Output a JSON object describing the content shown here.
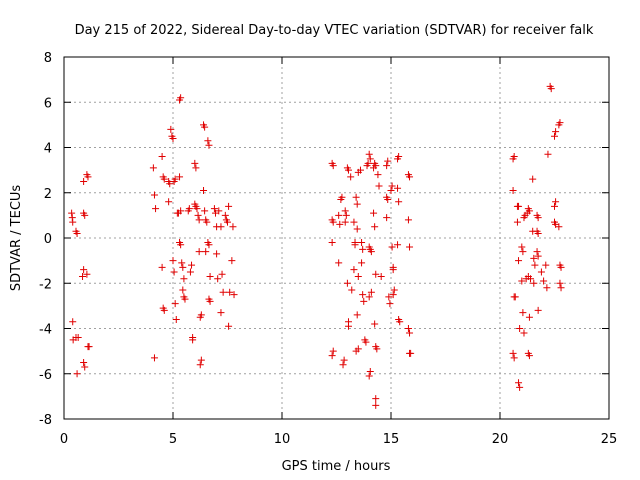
{
  "chart_data": {
    "type": "scatter",
    "title": "Day 215 of 2022, Sidereal Day-to-day VTEC variation (SDTVAR) for receiver falk",
    "xlabel": "GPS time / hours",
    "ylabel": "SDTVAR / TECUs",
    "xlim": [
      0,
      25
    ],
    "ylim": [
      -8,
      8
    ],
    "xticks": [
      0,
      5,
      10,
      15,
      20,
      25
    ],
    "yticks": [
      -8,
      -6,
      -4,
      -2,
      0,
      2,
      4,
      6,
      8
    ],
    "grid": true,
    "marker": "plus",
    "color": "#e00000",
    "series": [
      {
        "name": "falk",
        "points": [
          [
            0.35,
            1.1
          ],
          [
            0.38,
            0.9
          ],
          [
            0.4,
            0.7
          ],
          [
            0.55,
            0.3
          ],
          [
            0.6,
            0.2
          ],
          [
            0.4,
            -3.7
          ],
          [
            0.42,
            -4.5
          ],
          [
            0.55,
            -4.4
          ],
          [
            0.65,
            -4.4
          ],
          [
            0.6,
            -6.0
          ],
          [
            0.9,
            -5.5
          ],
          [
            0.95,
            -5.7
          ],
          [
            0.9,
            -1.4
          ],
          [
            0.85,
            -1.7
          ],
          [
            1.05,
            -1.6
          ],
          [
            1.1,
            -4.8
          ],
          [
            1.15,
            -4.8
          ],
          [
            0.9,
            2.5
          ],
          [
            1.05,
            2.8
          ],
          [
            1.1,
            2.7
          ],
          [
            0.9,
            1.1
          ],
          [
            0.95,
            1.0
          ],
          [
            4.1,
            3.1
          ],
          [
            4.15,
            1.9
          ],
          [
            4.2,
            1.3
          ],
          [
            4.15,
            -5.3
          ],
          [
            4.5,
            3.6
          ],
          [
            4.55,
            2.7
          ],
          [
            4.6,
            2.6
          ],
          [
            4.5,
            -1.3
          ],
          [
            4.55,
            -3.1
          ],
          [
            4.6,
            -3.2
          ],
          [
            4.8,
            2.5
          ],
          [
            4.85,
            2.4
          ],
          [
            4.8,
            1.6
          ],
          [
            4.9,
            4.8
          ],
          [
            4.95,
            4.5
          ],
          [
            5.0,
            4.4
          ],
          [
            5.05,
            2.5
          ],
          [
            5.1,
            2.6
          ],
          [
            5.2,
            1.1
          ],
          [
            5.25,
            1.1
          ],
          [
            5.0,
            -1.0
          ],
          [
            5.05,
            -1.5
          ],
          [
            5.1,
            -2.9
          ],
          [
            5.15,
            -3.6
          ],
          [
            5.3,
            6.1
          ],
          [
            5.35,
            6.2
          ],
          [
            5.3,
            2.7
          ],
          [
            5.35,
            1.2
          ],
          [
            5.3,
            -0.2
          ],
          [
            5.35,
            -0.3
          ],
          [
            5.4,
            -1.1
          ],
          [
            5.45,
            -1.3
          ],
          [
            5.5,
            -1.8
          ],
          [
            5.45,
            -2.3
          ],
          [
            5.5,
            -2.6
          ],
          [
            5.55,
            -2.7
          ],
          [
            5.7,
            1.2
          ],
          [
            5.75,
            1.3
          ],
          [
            5.8,
            -1.5
          ],
          [
            5.85,
            -1.2
          ],
          [
            5.9,
            -4.5
          ],
          [
            5.9,
            -4.4
          ],
          [
            6.0,
            3.3
          ],
          [
            6.05,
            3.1
          ],
          [
            6.0,
            1.5
          ],
          [
            6.05,
            1.4
          ],
          [
            6.1,
            1.3
          ],
          [
            6.15,
            1.0
          ],
          [
            6.2,
            0.8
          ],
          [
            6.2,
            -0.6
          ],
          [
            6.25,
            -3.5
          ],
          [
            6.3,
            -3.4
          ],
          [
            6.3,
            -5.4
          ],
          [
            6.25,
            -5.6
          ],
          [
            6.4,
            5.0
          ],
          [
            6.45,
            4.9
          ],
          [
            6.4,
            2.1
          ],
          [
            6.45,
            1.2
          ],
          [
            6.5,
            0.8
          ],
          [
            6.55,
            0.7
          ],
          [
            6.5,
            -0.6
          ],
          [
            6.6,
            -0.2
          ],
          [
            6.65,
            -0.3
          ],
          [
            6.7,
            -1.7
          ],
          [
            6.65,
            -2.7
          ],
          [
            6.7,
            -2.8
          ],
          [
            6.6,
            4.3
          ],
          [
            6.65,
            4.1
          ],
          [
            6.9,
            1.3
          ],
          [
            6.95,
            1.1
          ],
          [
            7.0,
            0.5
          ],
          [
            7.0,
            -0.7
          ],
          [
            7.05,
            -1.8
          ],
          [
            7.1,
            1.2
          ],
          [
            7.2,
            0.5
          ],
          [
            7.25,
            -1.6
          ],
          [
            7.2,
            -3.3
          ],
          [
            7.3,
            -2.4
          ],
          [
            7.4,
            1.0
          ],
          [
            7.45,
            0.8
          ],
          [
            7.5,
            0.7
          ],
          [
            7.55,
            1.4
          ],
          [
            7.6,
            -2.4
          ],
          [
            7.55,
            -3.9
          ],
          [
            7.75,
            0.5
          ],
          [
            7.7,
            -1.0
          ],
          [
            7.8,
            -2.5
          ],
          [
            12.3,
            3.3
          ],
          [
            12.35,
            3.2
          ],
          [
            12.3,
            0.8
          ],
          [
            12.35,
            0.7
          ],
          [
            12.3,
            -0.2
          ],
          [
            12.35,
            -5.0
          ],
          [
            12.3,
            -5.2
          ],
          [
            12.6,
            1.0
          ],
          [
            12.65,
            0.6
          ],
          [
            12.6,
            -1.1
          ],
          [
            12.7,
            1.7
          ],
          [
            12.75,
            1.8
          ],
          [
            12.8,
            -5.6
          ],
          [
            12.85,
            -5.4
          ],
          [
            12.9,
            1.2
          ],
          [
            12.95,
            1.0
          ],
          [
            12.9,
            0.7
          ],
          [
            13.0,
            -2.0
          ],
          [
            13.05,
            -3.7
          ],
          [
            13.05,
            -3.9
          ],
          [
            13.0,
            3.1
          ],
          [
            13.05,
            3.0
          ],
          [
            13.15,
            2.7
          ],
          [
            13.2,
            -2.3
          ],
          [
            13.3,
            -1.4
          ],
          [
            13.3,
            0.7
          ],
          [
            13.35,
            -0.2
          ],
          [
            13.35,
            -0.3
          ],
          [
            13.4,
            1.8
          ],
          [
            13.45,
            1.5
          ],
          [
            13.5,
            2.9
          ],
          [
            13.45,
            0.4
          ],
          [
            13.5,
            -1.7
          ],
          [
            13.45,
            -3.4
          ],
          [
            13.4,
            -5.0
          ],
          [
            13.5,
            -4.9
          ],
          [
            13.6,
            3.0
          ],
          [
            13.65,
            -0.2
          ],
          [
            13.7,
            -0.5
          ],
          [
            13.65,
            -1.1
          ],
          [
            13.7,
            -2.5
          ],
          [
            13.75,
            -2.8
          ],
          [
            13.8,
            -4.5
          ],
          [
            13.85,
            -4.6
          ],
          [
            13.9,
            3.2
          ],
          [
            13.95,
            3.3
          ],
          [
            14.0,
            3.7
          ],
          [
            14.05,
            3.5
          ],
          [
            14.0,
            -0.4
          ],
          [
            14.05,
            -0.5
          ],
          [
            14.1,
            -0.6
          ],
          [
            14.0,
            -2.6
          ],
          [
            14.1,
            -2.4
          ],
          [
            14.0,
            -6.1
          ],
          [
            14.05,
            -5.9
          ],
          [
            14.2,
            3.1
          ],
          [
            14.25,
            3.3
          ],
          [
            14.3,
            3.2
          ],
          [
            14.2,
            1.1
          ],
          [
            14.25,
            0.5
          ],
          [
            14.3,
            -1.6
          ],
          [
            14.25,
            -3.8
          ],
          [
            14.3,
            -4.8
          ],
          [
            14.35,
            -4.9
          ],
          [
            14.3,
            -7.1
          ],
          [
            14.3,
            -7.4
          ],
          [
            14.4,
            2.8
          ],
          [
            14.45,
            2.3
          ],
          [
            14.55,
            -1.7
          ],
          [
            14.8,
            3.2
          ],
          [
            14.85,
            3.4
          ],
          [
            14.8,
            1.8
          ],
          [
            14.85,
            1.7
          ],
          [
            14.8,
            0.9
          ],
          [
            14.9,
            -2.6
          ],
          [
            14.95,
            -2.9
          ],
          [
            15.0,
            2.1
          ],
          [
            15.05,
            2.3
          ],
          [
            15.05,
            -0.4
          ],
          [
            15.1,
            -1.3
          ],
          [
            15.1,
            -1.4
          ],
          [
            15.1,
            -2.5
          ],
          [
            15.15,
            -2.3
          ],
          [
            15.3,
            3.5
          ],
          [
            15.35,
            3.6
          ],
          [
            15.3,
            2.2
          ],
          [
            15.35,
            1.6
          ],
          [
            15.3,
            -0.3
          ],
          [
            15.35,
            -3.6
          ],
          [
            15.4,
            -3.7
          ],
          [
            15.8,
            2.8
          ],
          [
            15.85,
            2.7
          ],
          [
            15.8,
            0.8
          ],
          [
            15.85,
            -0.4
          ],
          [
            15.8,
            -4.0
          ],
          [
            15.85,
            -4.2
          ],
          [
            15.85,
            -5.1
          ],
          [
            15.9,
            -5.1
          ],
          [
            20.6,
            3.5
          ],
          [
            20.65,
            3.6
          ],
          [
            20.6,
            2.1
          ],
          [
            20.65,
            -2.6
          ],
          [
            20.7,
            -2.6
          ],
          [
            20.6,
            -5.1
          ],
          [
            20.65,
            -5.3
          ],
          [
            20.8,
            1.4
          ],
          [
            20.85,
            1.4
          ],
          [
            20.8,
            0.7
          ],
          [
            20.85,
            -1.0
          ],
          [
            20.9,
            -4.0
          ],
          [
            20.85,
            -6.4
          ],
          [
            20.9,
            -6.6
          ],
          [
            21.0,
            -0.4
          ],
          [
            21.05,
            -0.6
          ],
          [
            21.0,
            -1.9
          ],
          [
            21.05,
            -3.3
          ],
          [
            21.1,
            -4.2
          ],
          [
            21.1,
            0.9
          ],
          [
            21.15,
            1.0
          ],
          [
            21.2,
            -1.8
          ],
          [
            21.25,
            1.1
          ],
          [
            21.3,
            1.3
          ],
          [
            21.35,
            1.2
          ],
          [
            21.3,
            -1.7
          ],
          [
            21.35,
            -3.5
          ],
          [
            21.3,
            -5.1
          ],
          [
            21.35,
            -5.2
          ],
          [
            21.4,
            -1.8
          ],
          [
            21.5,
            2.6
          ],
          [
            21.5,
            0.3
          ],
          [
            21.55,
            -0.9
          ],
          [
            21.6,
            -1.2
          ],
          [
            21.55,
            -2.0
          ],
          [
            21.7,
            1.0
          ],
          [
            21.75,
            0.9
          ],
          [
            21.7,
            0.3
          ],
          [
            21.75,
            0.2
          ],
          [
            21.7,
            -0.6
          ],
          [
            21.75,
            -0.8
          ],
          [
            21.75,
            -3.2
          ],
          [
            21.9,
            -1.5
          ],
          [
            22.0,
            -1.9
          ],
          [
            22.1,
            -1.2
          ],
          [
            22.15,
            -2.2
          ],
          [
            22.2,
            3.7
          ],
          [
            22.3,
            6.7
          ],
          [
            22.35,
            6.6
          ],
          [
            22.5,
            1.4
          ],
          [
            22.55,
            1.6
          ],
          [
            22.5,
            0.7
          ],
          [
            22.55,
            0.6
          ],
          [
            22.5,
            4.5
          ],
          [
            22.55,
            4.7
          ],
          [
            22.7,
            5.0
          ],
          [
            22.75,
            5.1
          ],
          [
            22.7,
            0.5
          ],
          [
            22.75,
            -1.2
          ],
          [
            22.8,
            -1.3
          ],
          [
            22.75,
            -2.0
          ],
          [
            22.8,
            -2.2
          ]
        ]
      }
    ]
  }
}
